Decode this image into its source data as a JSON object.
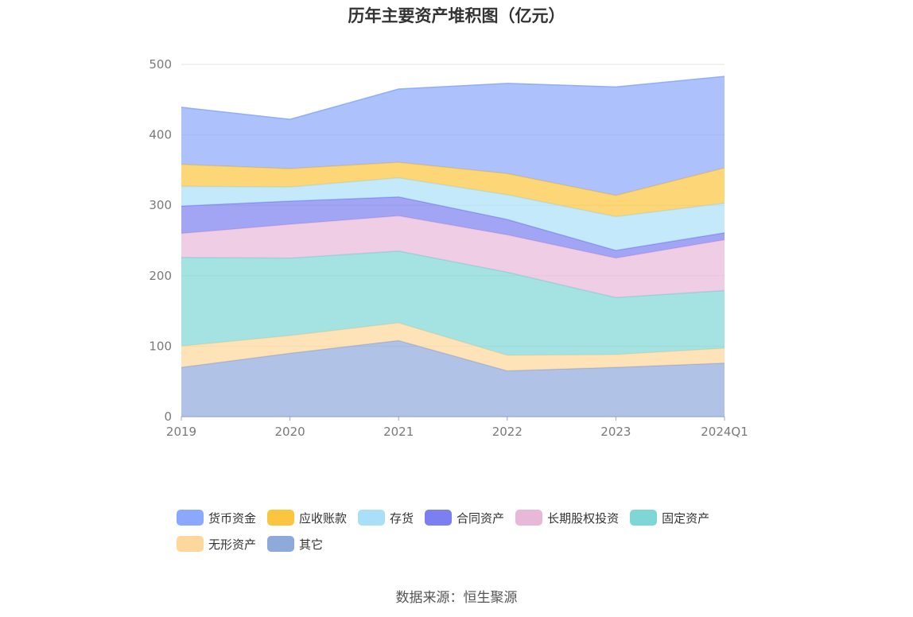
{
  "chart_data": {
    "type": "area",
    "stacked": true,
    "title": "历年主要资产堆积图（亿元）",
    "categories": [
      "2019",
      "2020",
      "2021",
      "2022",
      "2023",
      "2024Q1"
    ],
    "y_ticks": [
      "0",
      "100",
      "200",
      "300",
      "400",
      "500"
    ],
    "ylim": [
      0,
      500
    ],
    "grid": true,
    "legend_position": "bottom",
    "series": [
      {
        "name": "其它",
        "color": "#8eaadb",
        "values": [
          70,
          90,
          108,
          65,
          70,
          76
        ]
      },
      {
        "name": "无形资产",
        "color": "#fdd79b",
        "values": [
          30,
          25,
          25,
          22,
          18,
          21
        ]
      },
      {
        "name": "固定资产",
        "color": "#7fd6d6",
        "values": [
          126,
          110,
          102,
          118,
          81,
          82
        ]
      },
      {
        "name": "长期股权投资",
        "color": "#e8b8d8",
        "values": [
          34,
          48,
          50,
          53,
          56,
          72
        ]
      },
      {
        "name": "合同资产",
        "color": "#7b7ff0",
        "values": [
          39,
          33,
          27,
          22,
          11,
          10
        ]
      },
      {
        "name": "存货",
        "color": "#a9dff8",
        "values": [
          28,
          20,
          27,
          35,
          48,
          42
        ]
      },
      {
        "name": "应收账款",
        "color": "#fcc53f",
        "values": [
          31,
          26,
          22,
          30,
          30,
          50
        ]
      },
      {
        "name": "货币资金",
        "color": "#8aa8fc",
        "values": [
          81,
          70,
          104,
          128,
          154,
          130
        ]
      }
    ],
    "legend_order": [
      "货币资金",
      "应收账款",
      "存货",
      "合同资产",
      "长期股权投资",
      "固定资产",
      "无形资产",
      "其它"
    ]
  },
  "source": "数据来源：恒生聚源"
}
